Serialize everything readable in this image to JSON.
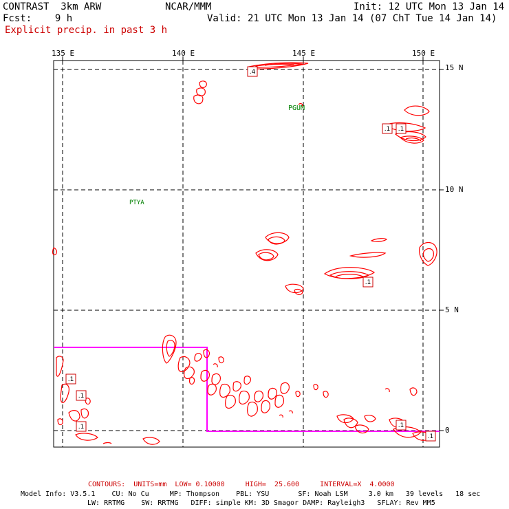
{
  "header": {
    "left_line1": "CONTRAST  3km ARW",
    "left_line2": "Fcst:    9 h",
    "subtitle": "Explicit precip. in past 3 h",
    "center": "NCAR/MMM",
    "init": "Init: 12 UTC Mon 13 Jan 14",
    "valid": "Valid: 21 UTC Mon 13 Jan 14 (07 ChT Tue 14 Jan 14)"
  },
  "map": {
    "lon_labels": [
      "135 E",
      "140 E",
      "145 E",
      "150 E"
    ],
    "lat_labels": [
      "15 N",
      "10 N",
      "5 N",
      "0"
    ],
    "stations": [
      "PGUM",
      "PTYA"
    ],
    "max_labels": [
      ".4",
      ".1",
      ".1",
      ".1",
      ".1",
      ".1",
      ".1",
      ".1",
      ".1"
    ],
    "colors": {
      "contour": "#ff0000",
      "box": "#ff00ff",
      "station": "#008000",
      "grid": "#000000"
    }
  },
  "footer": {
    "contours": "CONTOURS:  UNITS=mm  LOW= 0.10000     HIGH=  25.600     INTERVAL=X  4.0000",
    "model_line1": "Model Info: V3.5.1    CU: No Cu     MP: Thompson    PBL: YSU       SF: Noah LSM     3.0 km   39 levels   18 sec",
    "model_line2": "LW: RRTMG    SW: RRTMG   DIFF: simple KM: 3D Smagor DAMP: Rayleigh3   SFLAY: Rev MM5"
  }
}
